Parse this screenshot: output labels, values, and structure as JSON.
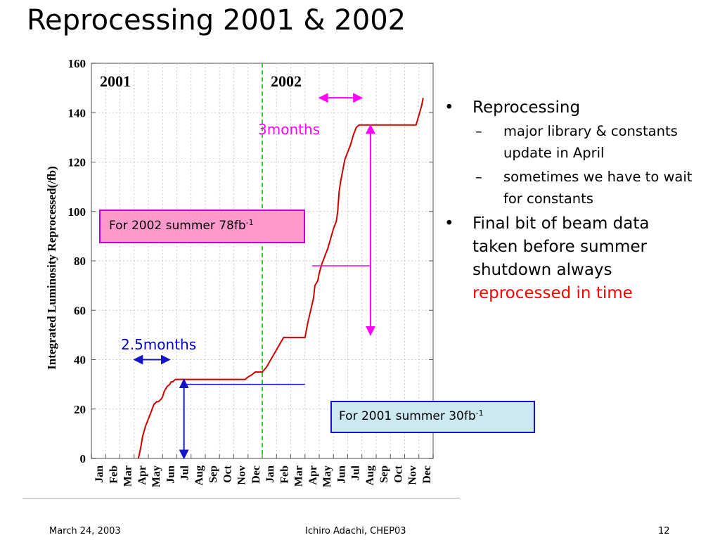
{
  "slide": {
    "title": "Reprocessing 2001 & 2002",
    "footer": {
      "date": "March 24, 2003",
      "center": "Ichiro Adachi, CHEP03",
      "page": "12"
    }
  },
  "bullets": [
    {
      "text": "Reprocessing",
      "marker": "•",
      "sub": [
        {
          "marker": "–",
          "text": "major library & constants update in April"
        },
        {
          "marker": "–",
          "text": "sometimes we have to wait for constants"
        }
      ]
    },
    {
      "marker": "•",
      "text_plain": "Final bit of beam data taken before summer shutdown always",
      "text_highlight": "reprocessed in time",
      "highlight_color": "#ff0000"
    }
  ],
  "annotations": {
    "callout_2002": {
      "text": "For 2002 summer 78fb",
      "sup": "-1",
      "background": "#ff99cc",
      "border": "#cc00cc"
    },
    "callout_2001": {
      "text": "For 2001 summer 30fb",
      "sup": "-1",
      "background": "#cce8f0",
      "border": "#1414cc"
    },
    "duration_2002": {
      "text": "3months",
      "color": "#ff00ff"
    },
    "duration_2001": {
      "text": "2.5months",
      "color": "#0000cc"
    }
  },
  "chart_data": {
    "type": "line",
    "ylabel": "Integrated Luminosity Reprocessed(/fb)",
    "ylim": [
      0,
      160
    ],
    "yticks": [
      0,
      20,
      40,
      60,
      80,
      100,
      120,
      140,
      160
    ],
    "xlim": [
      0,
      24
    ],
    "year_labels": [
      {
        "text": "2001",
        "start_month": 0
      },
      {
        "text": "2002",
        "start_month": 12
      }
    ],
    "month_labels": [
      "Jan",
      "Feb",
      "Mar",
      "Apr",
      "May",
      "Jun",
      "Jul",
      "Aug",
      "Sep",
      "Oct",
      "Nov",
      "Dec",
      "Jan",
      "Feb",
      "Mar",
      "Apr",
      "May",
      "Jun",
      "Jul",
      "Aug",
      "Sep",
      "Oct",
      "Nov",
      "Dec"
    ],
    "year_boundary_month": 12,
    "grid": true,
    "series_color": "#cc0000",
    "series": [
      {
        "x": [
          3.3,
          3.45,
          3.6,
          3.8,
          4.0,
          4.2,
          4.4,
          4.6,
          4.7,
          4.9,
          5.0,
          5.1,
          5.2,
          5.3,
          5.5,
          5.6,
          5.7,
          5.8,
          5.9,
          6.0,
          6.1,
          6.3,
          6.5,
          10.5,
          10.8,
          11.0,
          11.3,
          11.5,
          11.7,
          12.0,
          12.3,
          12.6,
          12.9,
          13.2,
          13.5,
          14.0,
          14.5,
          14.8,
          15.0,
          15.2,
          15.4,
          15.6,
          15.7,
          15.9,
          16.0,
          16.2,
          16.4,
          16.6,
          16.8,
          17.0,
          17.2,
          17.3,
          17.4,
          17.5,
          17.6,
          17.7,
          17.8,
          18.0,
          18.2,
          18.4,
          18.6,
          18.8,
          19.0,
          19.2,
          19.3,
          19.4,
          19.6,
          19.8,
          20.0,
          21.0,
          22.0,
          22.8,
          23.0,
          23.2,
          23.3
        ],
        "y": [
          0,
          4,
          9,
          13,
          16,
          19,
          22,
          23,
          23,
          24,
          25,
          27,
          28,
          29,
          30,
          31,
          31,
          31.5,
          32,
          32,
          32,
          32,
          32,
          32,
          32,
          33,
          34,
          35,
          35,
          35,
          37,
          40,
          43,
          46,
          49,
          49,
          49,
          49,
          49,
          55,
          60,
          65,
          70,
          72,
          75,
          79,
          82,
          85,
          89,
          93,
          96,
          100,
          108,
          112,
          115,
          118,
          121,
          124,
          127,
          131,
          134,
          135,
          135,
          135,
          135,
          135,
          135,
          135,
          135,
          135,
          135,
          135,
          139,
          143,
          146
        ]
      }
    ],
    "markers": [
      {
        "label": "2001 summer",
        "x": 6.5,
        "from": 0,
        "to": 32
      },
      {
        "label": "2002 summer",
        "x": 19.6,
        "from": 50,
        "to": 135
      }
    ],
    "durations": [
      {
        "label": "2.5months",
        "x_from": 3.0,
        "x_to": 5.5,
        "y": 40
      },
      {
        "label": "3months",
        "x_from": 16.0,
        "x_to": 19.0,
        "y": 146
      }
    ],
    "reference_lines": [
      {
        "label": "2001 summer",
        "y": 30,
        "x_from": 6.5,
        "x_to": 15.0
      },
      {
        "label": "2002 summer",
        "y": 78,
        "x_from": 15.5,
        "x_to": 19.6
      }
    ]
  }
}
